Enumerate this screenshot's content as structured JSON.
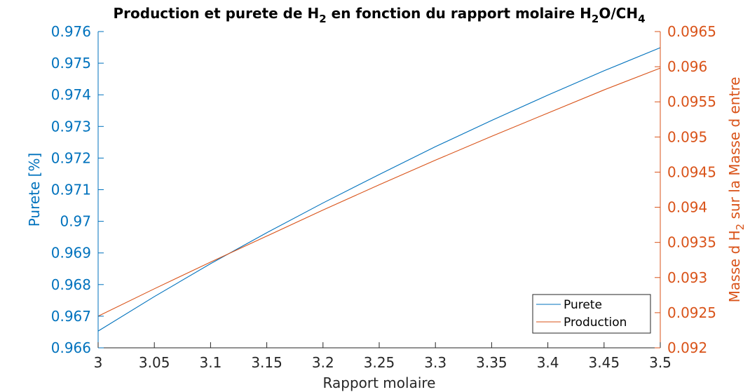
{
  "chart_data": {
    "type": "line",
    "title": "Production et purete de H_2 en fonction du rapport molaire H_2O/CH_4",
    "title_parts": [
      "Production et purete de H",
      "2",
      " en fonction du rapport molaire H",
      "2",
      "O/CH",
      "4"
    ],
    "xlabel": "Rapport molaire",
    "ylabel_left": "Purete [%]",
    "ylabel_right": "Masse d H_2 sur la Masse d entre",
    "ylabel_right_parts": [
      "Masse d H",
      "2",
      " sur la Masse d entre"
    ],
    "xlim": [
      3,
      3.5
    ],
    "ylim_left": [
      0.966,
      0.976
    ],
    "ylim_right": [
      0.092,
      0.0965
    ],
    "x_ticks": [
      "3",
      "3.05",
      "3.1",
      "3.15",
      "3.2",
      "3.25",
      "3.3",
      "3.35",
      "3.4",
      "3.45",
      "3.5"
    ],
    "y_ticks_left": [
      "0.966",
      "0.967",
      "0.968",
      "0.969",
      "0.97",
      "0.971",
      "0.972",
      "0.973",
      "0.974",
      "0.975",
      "0.976"
    ],
    "y_ticks_right": [
      "0.092",
      "0.0925",
      "0.093",
      "0.0935",
      "0.094",
      "0.0945",
      "0.095",
      "0.0955",
      "0.096",
      "0.0965"
    ],
    "grid": false,
    "legend_position": "bottom-right",
    "colors": {
      "left": "#0072BD",
      "right": "#D95319"
    },
    "series": [
      {
        "name": "Purete",
        "axis": "left",
        "color": "#0072BD",
        "x": [
          3.0,
          3.05,
          3.1,
          3.15,
          3.2,
          3.25,
          3.3,
          3.35,
          3.4,
          3.45,
          3.5
        ],
        "y": [
          0.96653,
          0.96762,
          0.96866,
          0.96964,
          0.97058,
          0.97148,
          0.97236,
          0.97319,
          0.97399,
          0.97476,
          0.97549
        ]
      },
      {
        "name": "Production",
        "axis": "right",
        "color": "#D95319",
        "x": [
          3.0,
          3.05,
          3.1,
          3.15,
          3.2,
          3.25,
          3.3,
          3.35,
          3.4,
          3.45,
          3.5
        ],
        "y": [
          0.09245,
          0.09284,
          0.09322,
          0.09359,
          0.09396,
          0.09432,
          0.09467,
          0.09501,
          0.09534,
          0.09567,
          0.09598
        ]
      }
    ]
  }
}
